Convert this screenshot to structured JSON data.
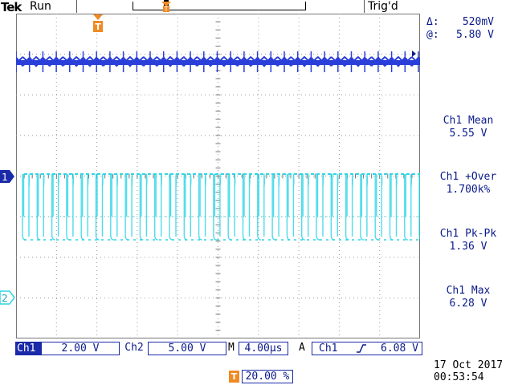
{
  "header": {
    "brand": "Tek",
    "run_status": "Run",
    "trigger_status": "Trig'd"
  },
  "cursor": {
    "delta_symbol": "Δ:",
    "delta_value": "520mV",
    "at_symbol": "@:",
    "at_value": "5.80 V"
  },
  "measurements": [
    {
      "label": "Ch1 Mean",
      "value": "5.55 V"
    },
    {
      "label": "Ch1 +Over",
      "value": "1.700k%"
    },
    {
      "label": "Ch1 Pk-Pk",
      "value": "1.36 V"
    },
    {
      "label": "Ch1 Max",
      "value": "6.28 V"
    }
  ],
  "bottom": {
    "ch1_label": "Ch1",
    "ch1_scale": "2.00 V",
    "ch2_label": "Ch2",
    "ch2_scale": "5.00 V",
    "time_mode": "M",
    "time_scale": "4.00µs",
    "trigger_mode": "A",
    "trigger_source": "Ch1",
    "trigger_slope_icon": "rising-edge-icon",
    "trigger_level": "6.08 V",
    "trigger_position": "20.00 %",
    "date": "17 Oct  2017",
    "time": "00:53:54"
  },
  "markers": {
    "ch1": "1",
    "ch2": "2",
    "trigger": "T"
  },
  "colors": {
    "ch1_trace": "#2a3fd9",
    "ch2_trace": "#2fd6e6",
    "trigger": "#f08a24",
    "text": "#0a1a8a",
    "grid": "#7a7a7a"
  }
}
